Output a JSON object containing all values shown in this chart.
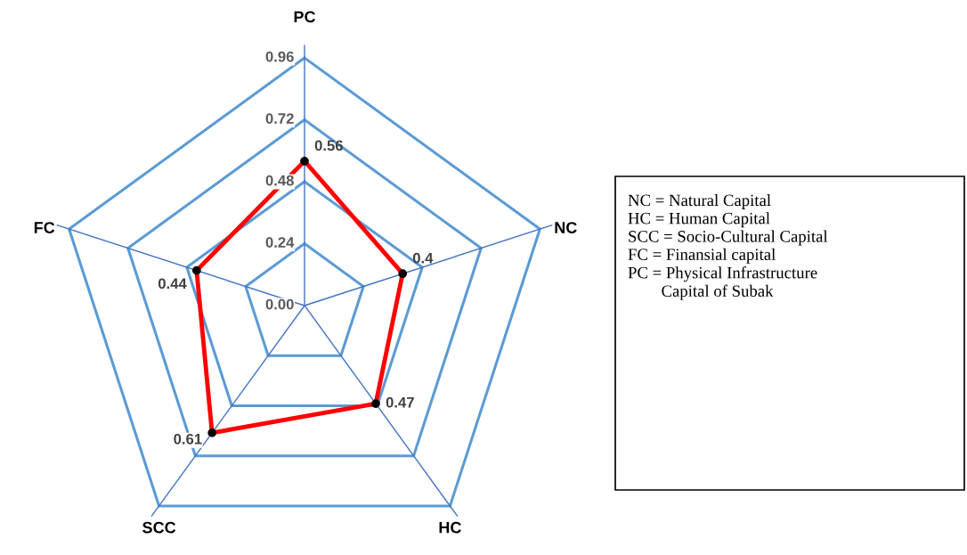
{
  "chart_data": {
    "type": "radar",
    "categories": [
      "PC",
      "NC",
      "HC",
      "SCC",
      "FC"
    ],
    "series": [
      {
        "color": "#ff0000",
        "values": [
          0.56,
          0.4,
          0.47,
          0.61,
          0.44
        ]
      }
    ],
    "ylim": [
      0,
      0.96
    ],
    "yticks": [
      {
        "value": 0,
        "label": "0.00"
      },
      0.24,
      0.48,
      0.72,
      0.96
    ],
    "grid": true,
    "marker": "circle",
    "line_style": "solid",
    "data_labels": true,
    "annotations": [
      "NC = Natural Capital",
      "HC = Human Capital",
      "SCC = Socio-Cultural Capital",
      "FC = Finansial capital",
      "PC = Physical Infrastructure\n        Capital of Subak"
    ]
  }
}
